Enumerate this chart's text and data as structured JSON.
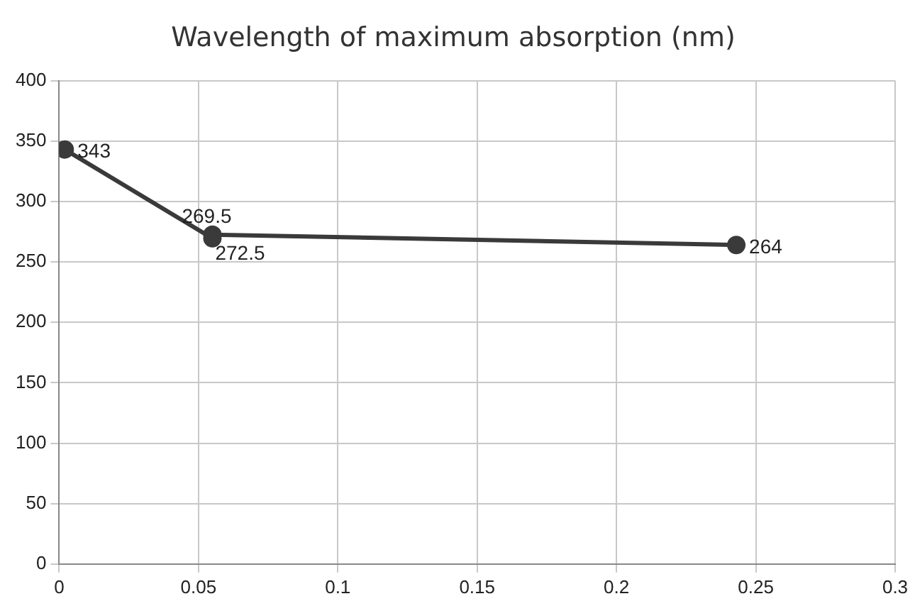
{
  "chart_data": {
    "type": "line",
    "title": "Wavelength of maximum absorption (nm)",
    "x": [
      0.002,
      0.055,
      0.055,
      0.243
    ],
    "series": [
      {
        "color": "#3a3a3a",
        "values": [
          343,
          269.5,
          272.5,
          264
        ]
      }
    ],
    "xlim": [
      0,
      0.3
    ],
    "xticks": [
      0,
      0.05,
      0.1,
      0.15,
      0.2,
      0.25,
      0.3
    ],
    "ylim": [
      0,
      400
    ],
    "yticks": [
      0,
      50,
      100,
      150,
      200,
      250,
      300,
      350,
      400
    ],
    "grid": true,
    "legend": false,
    "marker": "circle",
    "line_style": "solid",
    "data_labels": true
  }
}
